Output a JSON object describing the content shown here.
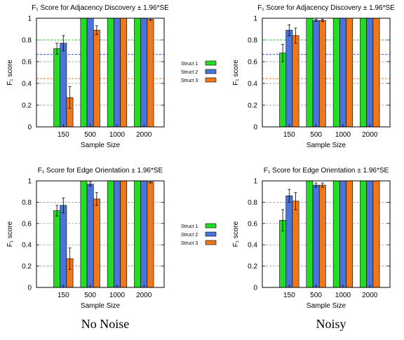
{
  "legend_labels": [
    "Struct 1",
    "Struct 2",
    "Struct 3"
  ],
  "captions": {
    "left": "No Noise",
    "right": "Noisy"
  },
  "colors": {
    "struct1": "#22dd22",
    "struct2": "#4a74d8",
    "struct3": "#f07818",
    "ref_green": "#22cc22",
    "ref_blue": "#2255dd",
    "ref_orange": "#ee7722",
    "grid": "#888888"
  },
  "chart_data": [
    {
      "type": "bar",
      "title": "F₁ Score for Adjacency Discovery ± 1.96*SE",
      "xlabel": "Sample Size",
      "ylabel": "F₁ score",
      "ylim": [
        0,
        1
      ],
      "yticks": [
        "0",
        "0.2",
        "0.4",
        "0.6",
        "0.8",
        "1"
      ],
      "categories": [
        "150",
        "500",
        "1000",
        "2000"
      ],
      "series": [
        {
          "name": "Struct 1",
          "values": [
            0.72,
            1.0,
            1.0,
            1.0
          ],
          "errors": [
            0.05,
            0,
            0,
            0
          ]
        },
        {
          "name": "Struct 2",
          "values": [
            0.77,
            1.0,
            1.0,
            1.0
          ],
          "errors": [
            0.07,
            0,
            0,
            0
          ]
        },
        {
          "name": "Struct 3",
          "values": [
            0.27,
            0.89,
            1.0,
            0.99
          ],
          "errors": [
            0.1,
            0.04,
            0,
            0.01
          ]
        }
      ],
      "reference_lines": [
        0.8,
        0.667,
        0.444
      ],
      "grid": true
    },
    {
      "type": "bar",
      "title": "F₁ Score for Adjacency Discovery ± 1.96*SE",
      "xlabel": "Sample Size",
      "ylabel": "F₁ score",
      "ylim": [
        0,
        1
      ],
      "yticks": [
        "0",
        "0.2",
        "0.4",
        "0.6",
        "0.8",
        "1"
      ],
      "categories": [
        "150",
        "500",
        "1000",
        "2000"
      ],
      "series": [
        {
          "name": "Struct 1",
          "values": [
            0.68,
            1.0,
            1.0,
            1.0
          ],
          "errors": [
            0.08,
            0,
            0,
            0
          ]
        },
        {
          "name": "Struct 2",
          "values": [
            0.89,
            0.98,
            1.0,
            1.0
          ],
          "errors": [
            0.05,
            0.01,
            0,
            0
          ]
        },
        {
          "name": "Struct 3",
          "values": [
            0.84,
            0.98,
            1.0,
            1.0
          ],
          "errors": [
            0.07,
            0.01,
            0,
            0
          ]
        }
      ],
      "reference_lines": [
        0.8,
        0.667,
        0.444
      ],
      "grid": true
    },
    {
      "type": "bar",
      "title": "F₁ Score for Edge Orientation ± 1.96*SE",
      "xlabel": "Sample Size",
      "ylabel": "F₁ score",
      "ylim": [
        0,
        1
      ],
      "yticks": [
        "0",
        "0.2",
        "0.4",
        "0.6",
        "0.8",
        "1"
      ],
      "categories": [
        "150",
        "500",
        "1000",
        "2000"
      ],
      "series": [
        {
          "name": "Struct 1",
          "values": [
            0.72,
            1.0,
            1.0,
            1.0
          ],
          "errors": [
            0.05,
            0,
            0,
            0
          ]
        },
        {
          "name": "Struct 2",
          "values": [
            0.77,
            0.97,
            1.0,
            1.0
          ],
          "errors": [
            0.07,
            0.02,
            0,
            0
          ]
        },
        {
          "name": "Struct 3",
          "values": [
            0.27,
            0.83,
            1.0,
            0.99
          ],
          "errors": [
            0.1,
            0.06,
            0,
            0.01
          ]
        }
      ],
      "grid": true
    },
    {
      "type": "bar",
      "title": "F₁ Score for Edge Orientation ± 1.96*SE",
      "xlabel": "Sample Size",
      "ylabel": "F₁ score",
      "ylim": [
        0,
        1
      ],
      "yticks": [
        "0",
        "0.2",
        "0.4",
        "0.6",
        "0.8",
        "1"
      ],
      "categories": [
        "150",
        "500",
        "1000",
        "2000"
      ],
      "series": [
        {
          "name": "Struct 1",
          "values": [
            0.63,
            1.0,
            1.0,
            1.0
          ],
          "errors": [
            0.1,
            0,
            0,
            0
          ]
        },
        {
          "name": "Struct 2",
          "values": [
            0.86,
            0.96,
            1.0,
            1.0
          ],
          "errors": [
            0.06,
            0.02,
            0,
            0
          ]
        },
        {
          "name": "Struct 3",
          "values": [
            0.81,
            0.96,
            1.0,
            1.0
          ],
          "errors": [
            0.08,
            0.02,
            0,
            0
          ]
        }
      ],
      "grid": true
    }
  ]
}
